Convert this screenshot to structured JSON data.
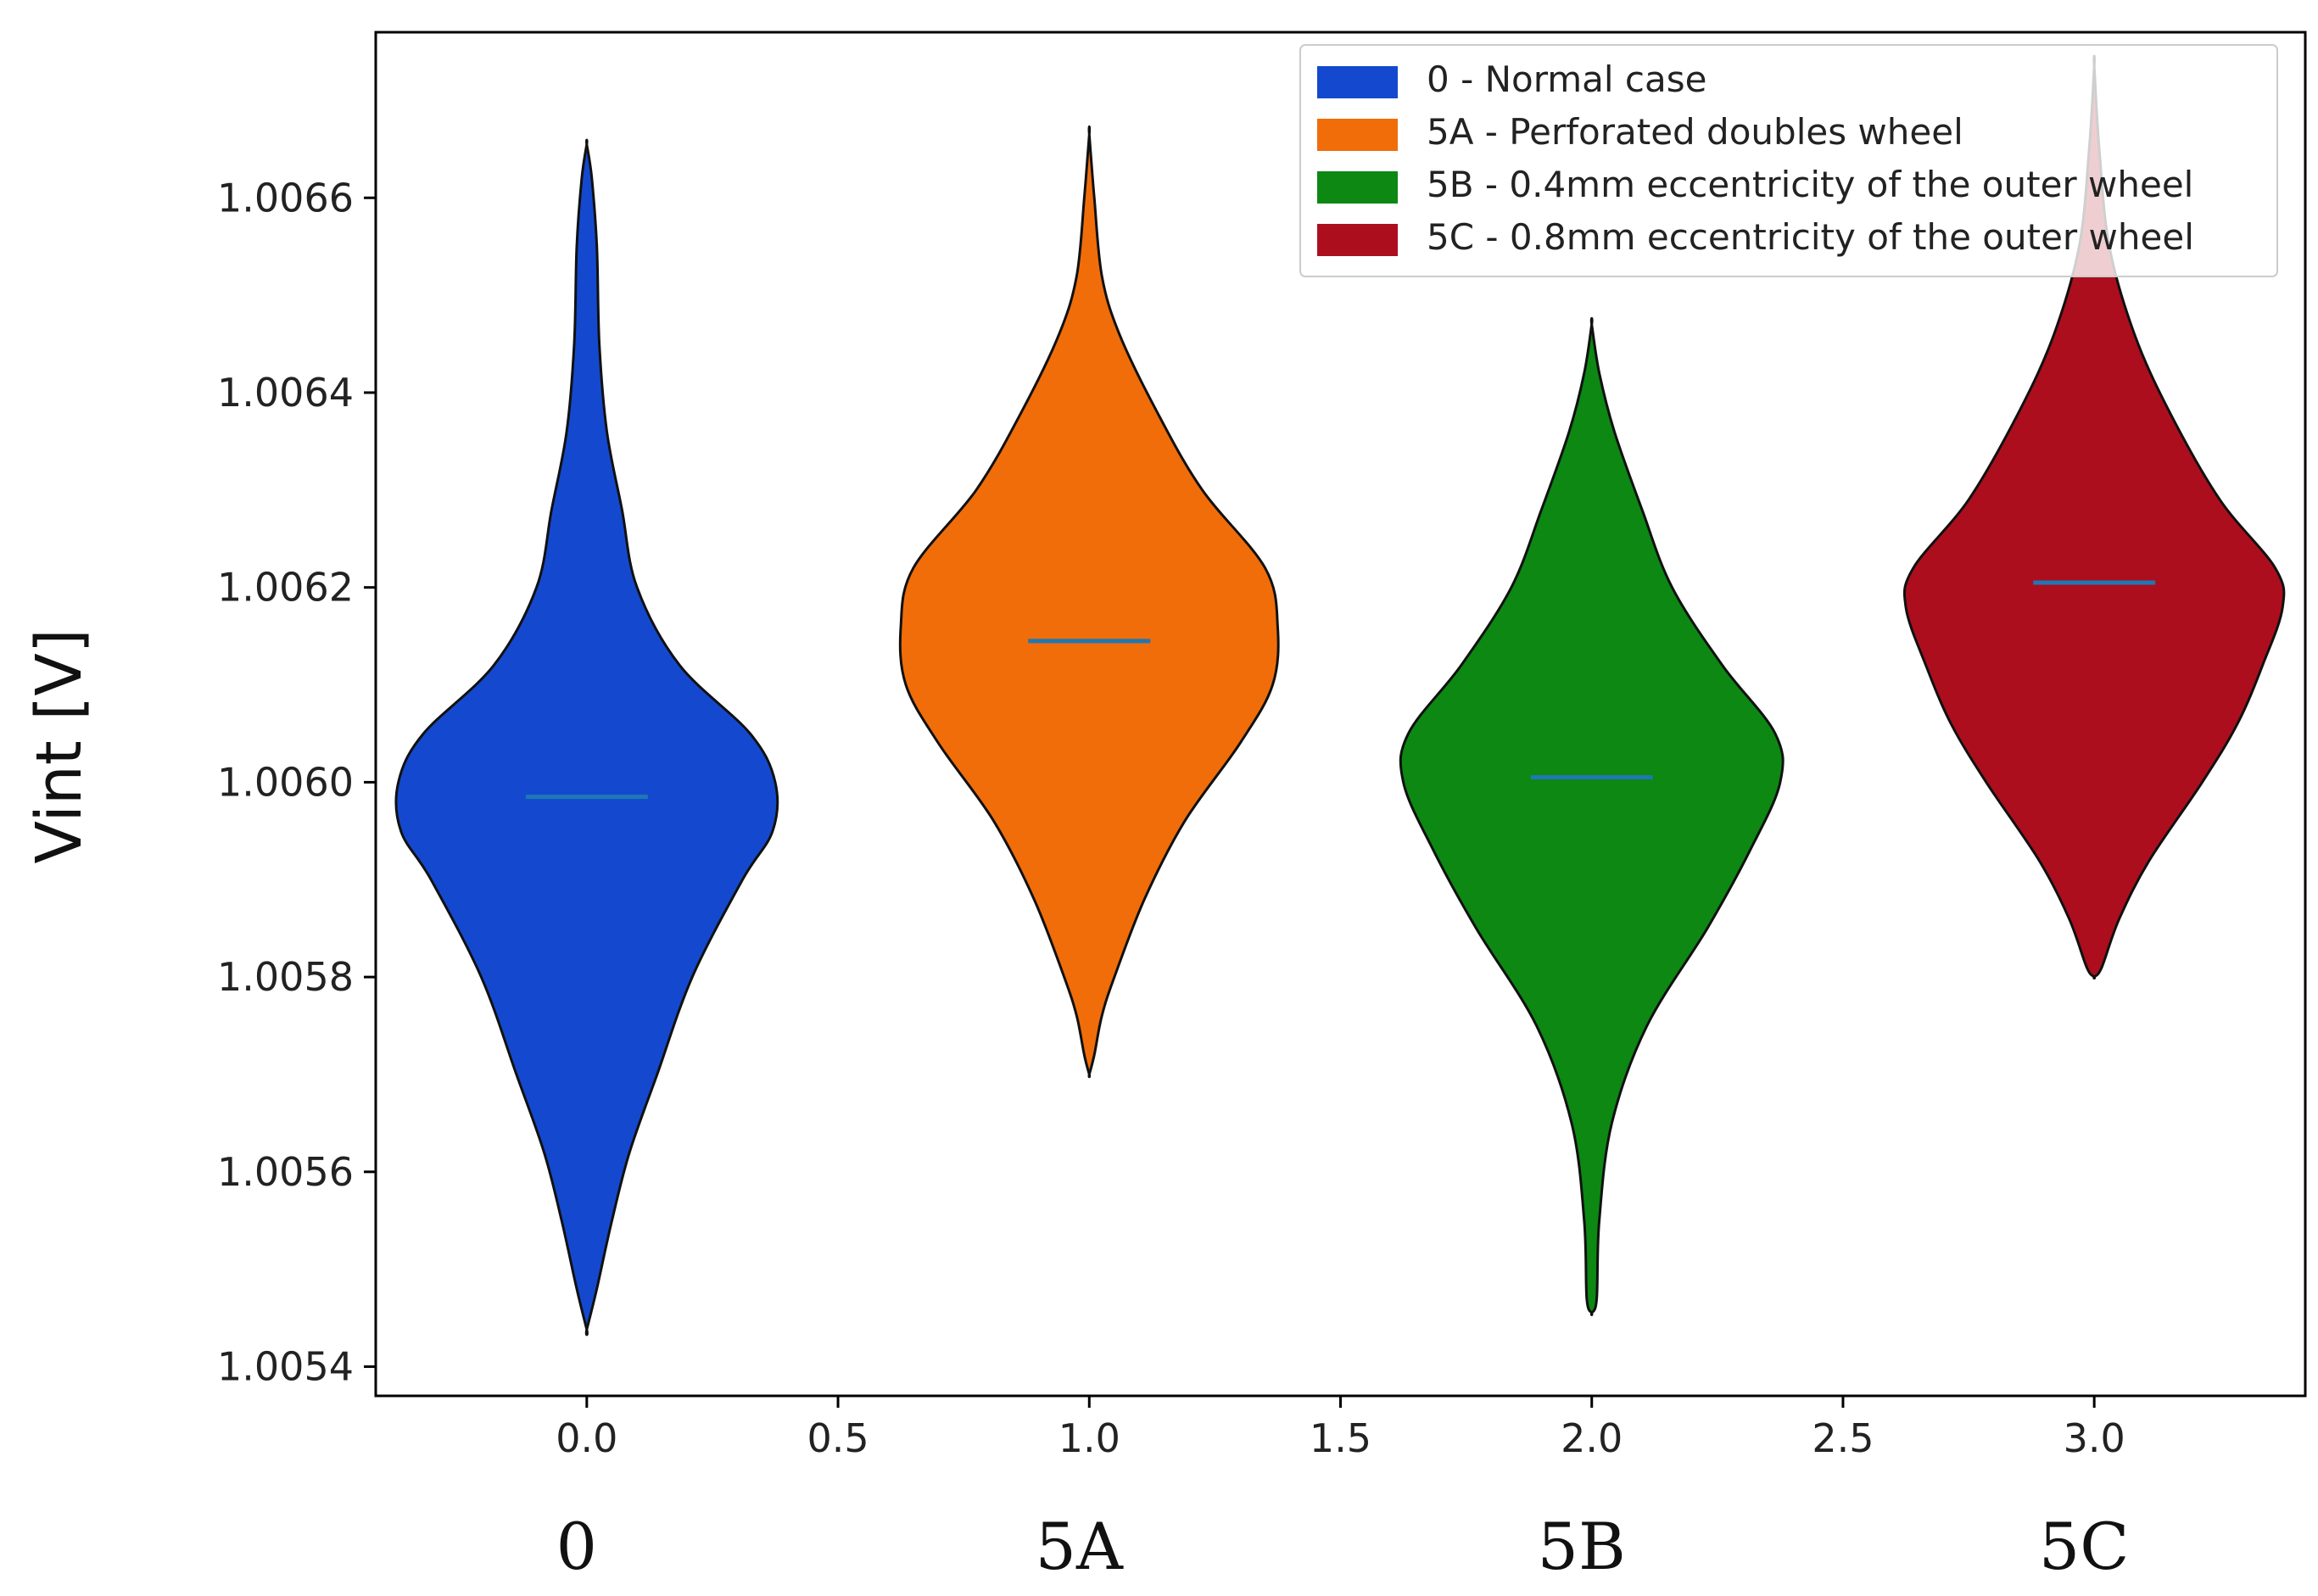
{
  "chart_data": {
    "type": "violin",
    "ylabel": "Vint [V]",
    "xlim": [
      -0.42,
      3.42
    ],
    "ylim": [
      1.00537,
      1.00677
    ],
    "xticks": [
      0.0,
      0.5,
      1.0,
      1.5,
      2.0,
      2.5,
      3.0
    ],
    "xtick_labels": [
      "0.0",
      "0.5",
      "1.0",
      "1.5",
      "2.0",
      "2.5",
      "3.0"
    ],
    "yticks": [
      1.0054,
      1.0056,
      1.0058,
      1.006,
      1.0062,
      1.0064,
      1.0066
    ],
    "ytick_labels": [
      "1.0054",
      "1.0056",
      "1.0058",
      "1.0060",
      "1.0062",
      "1.0064",
      "1.0066"
    ],
    "category_labels": [
      "0",
      "5A",
      "5B",
      "5C"
    ],
    "legend_location": "upper-right",
    "series": [
      {
        "name": "0 - Normal case",
        "position": 0,
        "color": "#1449CF",
        "min": 1.005438,
        "max": 1.006655,
        "median": 1.005985,
        "profile": [
          [
            1.005438,
            0.0
          ],
          [
            1.00548,
            0.04
          ],
          [
            1.00555,
            0.1
          ],
          [
            1.00562,
            0.17
          ],
          [
            1.0057,
            0.28
          ],
          [
            1.0058,
            0.42
          ],
          [
            1.0059,
            0.62
          ],
          [
            1.00595,
            0.74
          ],
          [
            1.006,
            0.75
          ],
          [
            1.00605,
            0.65
          ],
          [
            1.00612,
            0.37
          ],
          [
            1.0062,
            0.2
          ],
          [
            1.00628,
            0.14
          ],
          [
            1.00636,
            0.08
          ],
          [
            1.00645,
            0.05
          ],
          [
            1.00655,
            0.04
          ],
          [
            1.00662,
            0.02
          ],
          [
            1.006655,
            0.0
          ]
        ]
      },
      {
        "name": "5A - Perforated doubles wheel",
        "position": 1,
        "color": "#F06D0A",
        "min": 1.0057,
        "max": 1.006665,
        "median": 1.006145,
        "profile": [
          [
            1.0057,
            0.0
          ],
          [
            1.00572,
            0.02
          ],
          [
            1.00576,
            0.05
          ],
          [
            1.0058,
            0.1
          ],
          [
            1.00588,
            0.22
          ],
          [
            1.00596,
            0.38
          ],
          [
            1.00604,
            0.6
          ],
          [
            1.0061,
            0.73
          ],
          [
            1.00616,
            0.75
          ],
          [
            1.00622,
            0.7
          ],
          [
            1.0063,
            0.45
          ],
          [
            1.00638,
            0.27
          ],
          [
            1.00646,
            0.12
          ],
          [
            1.00652,
            0.05
          ],
          [
            1.0066,
            0.02
          ],
          [
            1.006665,
            0.0
          ]
        ]
      },
      {
        "name": "5B - 0.4mm eccentricity of the outer wheel",
        "position": 2,
        "color": "#0C8813",
        "min": 1.005455,
        "max": 1.00647,
        "median": 1.006005,
        "profile": [
          [
            1.005455,
            0.0
          ],
          [
            1.00547,
            0.02
          ],
          [
            1.00555,
            0.03
          ],
          [
            1.00565,
            0.08
          ],
          [
            1.00575,
            0.22
          ],
          [
            1.00585,
            0.46
          ],
          [
            1.00593,
            0.63
          ],
          [
            1.006,
            0.75
          ],
          [
            1.00605,
            0.73
          ],
          [
            1.00612,
            0.52
          ],
          [
            1.0062,
            0.32
          ],
          [
            1.00628,
            0.2
          ],
          [
            1.00636,
            0.09
          ],
          [
            1.00642,
            0.03
          ],
          [
            1.00647,
            0.0
          ]
        ]
      },
      {
        "name": "5C - 0.8mm eccentricity of the outer wheel",
        "position": 3,
        "color": "#AD0E1D",
        "min": 1.0058,
        "max": 1.006735,
        "median": 1.006205,
        "profile": [
          [
            1.0058,
            0.0
          ],
          [
            1.00581,
            0.03
          ],
          [
            1.00586,
            0.1
          ],
          [
            1.00592,
            0.22
          ],
          [
            1.006,
            0.43
          ],
          [
            1.00606,
            0.57
          ],
          [
            1.00612,
            0.67
          ],
          [
            1.00618,
            0.75
          ],
          [
            1.00622,
            0.72
          ],
          [
            1.00629,
            0.5
          ],
          [
            1.00638,
            0.3
          ],
          [
            1.00646,
            0.16
          ],
          [
            1.00655,
            0.06
          ],
          [
            1.00665,
            0.02
          ],
          [
            1.006735,
            0.0
          ]
        ]
      }
    ]
  }
}
